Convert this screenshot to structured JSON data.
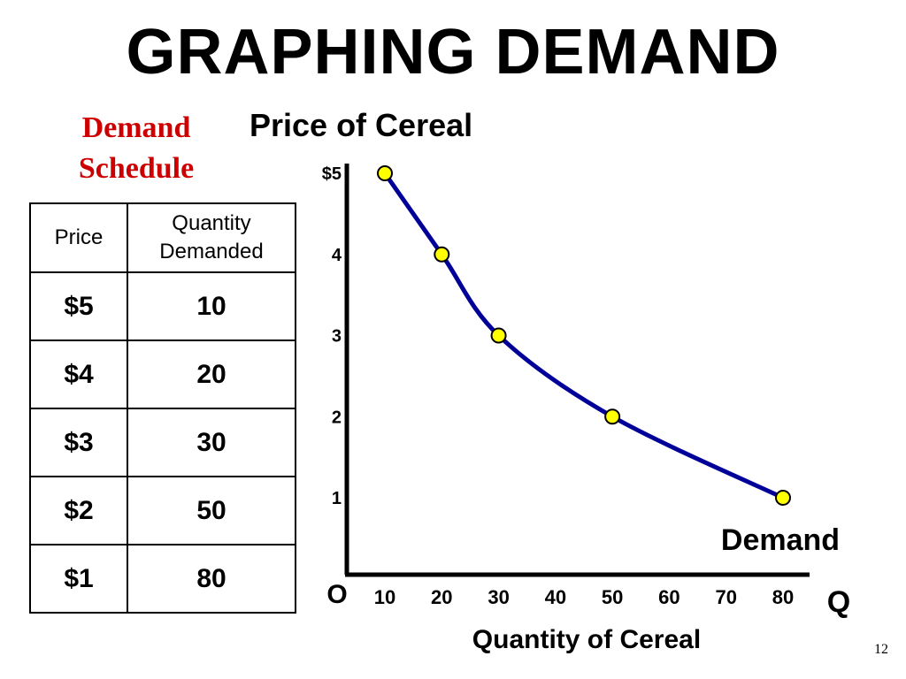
{
  "slide": {
    "title": "GRAPHING DEMAND",
    "page_number": "12"
  },
  "schedule": {
    "title_line1": "Demand",
    "title_line2": "Schedule",
    "headers": [
      "Price",
      "Quantity Demanded"
    ],
    "rows": [
      {
        "price": "$5",
        "quantity": "10"
      },
      {
        "price": "$4",
        "quantity": "20"
      },
      {
        "price": "$3",
        "quantity": "30"
      },
      {
        "price": "$2",
        "quantity": "50"
      },
      {
        "price": "$1",
        "quantity": "80"
      }
    ]
  },
  "chart_data": {
    "type": "line",
    "title": "Price of Cereal",
    "xlabel": "Quantity of Cereal",
    "ylabel": "Price of Cereal",
    "x_axis_symbol": "Q",
    "origin_label": "O",
    "xlim": [
      0,
      82
    ],
    "ylim": [
      0,
      5.1
    ],
    "x_ticks": [
      "10",
      "20",
      "30",
      "40",
      "50",
      "60",
      "70",
      "80"
    ],
    "y_ticks": [
      "$5",
      "4",
      "3",
      "2",
      "1"
    ],
    "grid": false,
    "legend": "none",
    "series": [
      {
        "name": "Demand",
        "x": [
          10,
          20,
          30,
          50,
          80
        ],
        "y": [
          5,
          4,
          3,
          2,
          1
        ],
        "line_color": "#000099",
        "marker_color": "#ffff00"
      }
    ]
  }
}
